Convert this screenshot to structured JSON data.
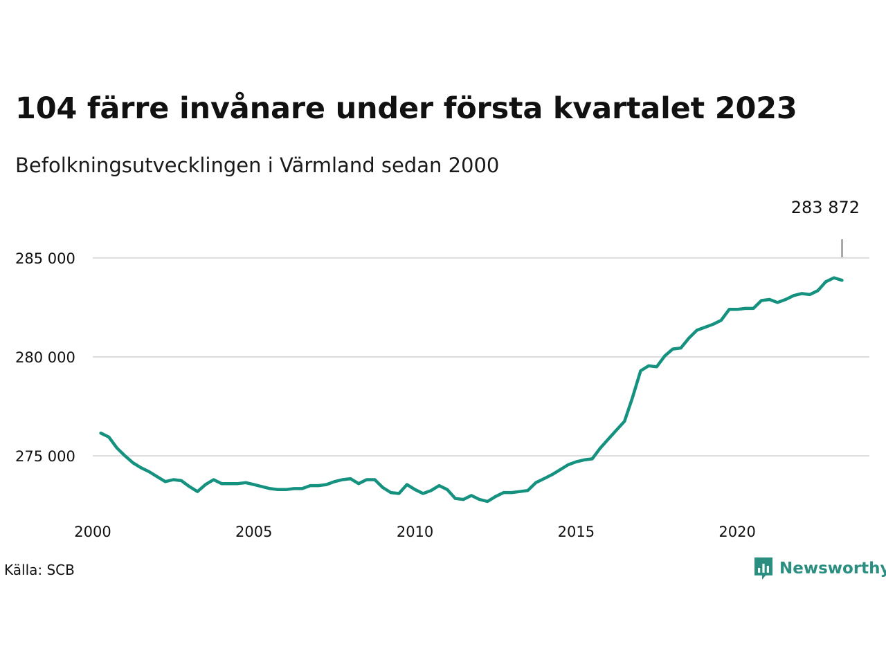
{
  "chart_data": {
    "type": "line",
    "title": "104 färre invånare under första kvartalet 2023",
    "subtitle": "Befolkningsutvecklingen i Värmland sedan 2000",
    "source": "Källa: SCB",
    "brand": "Newsworthy",
    "line_color": "#14917f",
    "grid": true,
    "x_ticks": [
      2000,
      2005,
      2010,
      2015,
      2020
    ],
    "x_tick_labels": [
      "2000",
      "2005",
      "2010",
      "2015",
      "2020"
    ],
    "y_ticks": [
      275000,
      280000,
      285000
    ],
    "y_tick_labels": [
      "275 000",
      "280 000",
      "285 000"
    ],
    "xlim": [
      2000,
      2024.1
    ],
    "ylim": [
      272000,
      286500
    ],
    "end_label": "283 872",
    "series": [
      {
        "x": [
          2000.25,
          2000.5,
          2000.75,
          2001.0,
          2001.25,
          2001.5,
          2001.75,
          2002.0,
          2002.25,
          2002.5,
          2002.75,
          2003.0,
          2003.25,
          2003.5,
          2003.75,
          2004.0,
          2004.25,
          2004.5,
          2004.75,
          2005.0,
          2005.25,
          2005.5,
          2005.75,
          2006.0,
          2006.25,
          2006.5,
          2006.75,
          2007.0,
          2007.25,
          2007.5,
          2007.75,
          2008.0,
          2008.25,
          2008.5,
          2008.75,
          2009.0,
          2009.25,
          2009.5,
          2009.75,
          2010.0,
          2010.25,
          2010.5,
          2010.75,
          2011.0,
          2011.25,
          2011.5,
          2011.75,
          2012.0,
          2012.25,
          2012.5,
          2012.75,
          2013.0,
          2013.25,
          2013.5,
          2013.75,
          2014.0,
          2014.25,
          2014.5,
          2014.75,
          2015.0,
          2015.25,
          2015.5,
          2015.75,
          2016.0,
          2016.25,
          2016.5,
          2016.75,
          2017.0,
          2017.25,
          2017.5,
          2017.75,
          2018.0,
          2018.25,
          2018.5,
          2018.75,
          2019.0,
          2019.25,
          2019.5,
          2019.75,
          2020.0,
          2020.25,
          2020.5,
          2020.75,
          2021.0,
          2021.25,
          2021.5,
          2021.75,
          2022.0,
          2022.25,
          2022.5,
          2022.75,
          2023.0,
          2023.25
        ],
        "y": [
          276150,
          275950,
          275400,
          275000,
          274650,
          274400,
          274200,
          273950,
          273700,
          273800,
          273750,
          273450,
          273200,
          273550,
          273800,
          273600,
          273600,
          273600,
          273650,
          273550,
          273450,
          273350,
          273300,
          273300,
          273350,
          273350,
          273500,
          273500,
          273550,
          273700,
          273800,
          273850,
          273600,
          273800,
          273800,
          273400,
          273150,
          273100,
          273550,
          273300,
          273100,
          273250,
          273500,
          273300,
          272850,
          272800,
          273000,
          272800,
          272700,
          272950,
          273150,
          273150,
          273200,
          273250,
          273650,
          273850,
          274050,
          274300,
          274550,
          274700,
          274800,
          274850,
          275400,
          275850,
          276300,
          276750,
          277950,
          279300,
          279550,
          279500,
          280050,
          280400,
          280450,
          280950,
          281350,
          281500,
          281650,
          281850,
          282400,
          282400,
          282450,
          282450,
          282850,
          282900,
          282750,
          282900,
          283100,
          283200,
          283150,
          283350,
          283800,
          284000,
          283872
        ]
      }
    ]
  }
}
